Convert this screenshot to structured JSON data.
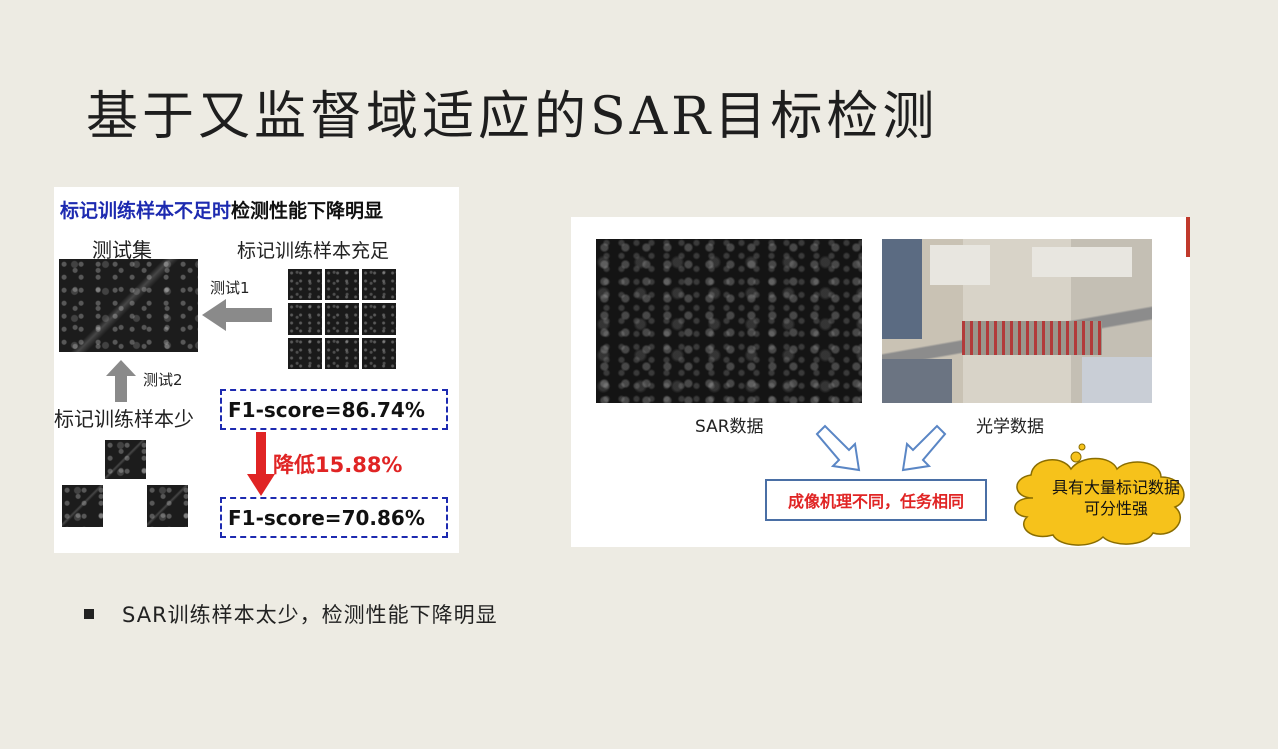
{
  "title": "基于又监督域适应的SAR目标检测",
  "left_panel": {
    "heading_blue": "标记训练样本不足时",
    "heading_black": "检测性能下降明显",
    "test_set_label": "测试集",
    "sufficient_label": "标记训练样本充足",
    "test1_label": "测试1",
    "test2_label": "测试2",
    "few_label": "标记训练样本少",
    "f1_high": "F1-score=86.74%",
    "drop_label": "降低15.88%",
    "f1_low": "F1-score=70.86%"
  },
  "right_panel": {
    "sar_caption": "SAR数据",
    "optical_caption": "光学数据",
    "mechanism_text": "成像机理不同，任务相同",
    "cloud_line1": "具有大量标记数据",
    "cloud_line2": "可分性强"
  },
  "bullet_text": "SAR训练样本太少，检测性能下降明显",
  "colors": {
    "background": "#edebe3",
    "heading_blue": "#1d2ab0",
    "alert_red": "#e02424",
    "cloud_yellow": "#f6c21b"
  }
}
